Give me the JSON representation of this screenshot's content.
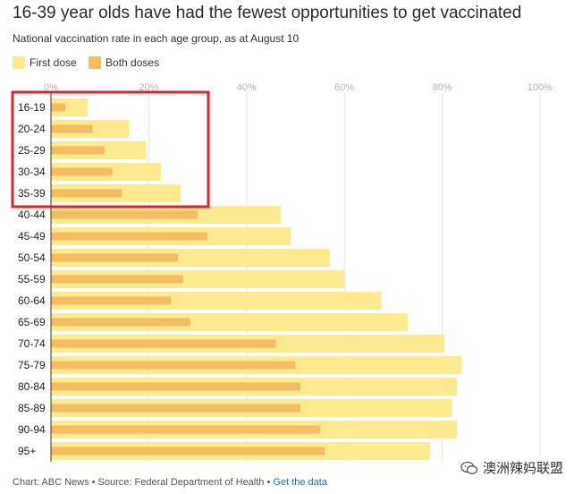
{
  "chart_data": {
    "type": "bar",
    "orientation": "horizontal",
    "title": "16-39 year olds have had the fewest opportunities to get vaccinated",
    "subtitle": "National vaccination rate in each age group, as at August 10",
    "xlim": [
      0,
      100
    ],
    "ticks": [
      "0%",
      "20%",
      "40%",
      "60%",
      "80%",
      "100%"
    ],
    "tick_values": [
      0,
      20,
      40,
      60,
      80,
      100
    ],
    "grid": true,
    "legend_position": "top-left",
    "categories": [
      "16-19",
      "20-24",
      "25-29",
      "30-34",
      "35-39",
      "40-44",
      "45-49",
      "50-54",
      "55-59",
      "60-64",
      "65-69",
      "70-74",
      "75-79",
      "80-84",
      "85-89",
      "90-94",
      "95+"
    ],
    "series": [
      {
        "name": "First dose",
        "color": "#fde98e",
        "values": [
          7.5,
          16,
          19.5,
          22.5,
          26.5,
          47,
          49,
          57,
          60,
          67.5,
          73,
          80.5,
          84,
          83,
          82,
          83,
          77.5
        ]
      },
      {
        "name": "Both doses",
        "color": "#f5bd62",
        "values": [
          3,
          8.5,
          11,
          12.5,
          14.5,
          30,
          32,
          26,
          27,
          24.5,
          28.5,
          46,
          50,
          51,
          51,
          55,
          56
        ]
      }
    ],
    "highlight": {
      "color": "#e0202b",
      "categories": [
        "16-19",
        "35-39"
      ]
    }
  },
  "footer": {
    "credit": "Chart: ABC News • Source: Federal Department of Health • ",
    "link_label": "Get the data"
  },
  "watermark": {
    "text": "澳洲辣妈联盟",
    "icon": "wechat-icon"
  }
}
